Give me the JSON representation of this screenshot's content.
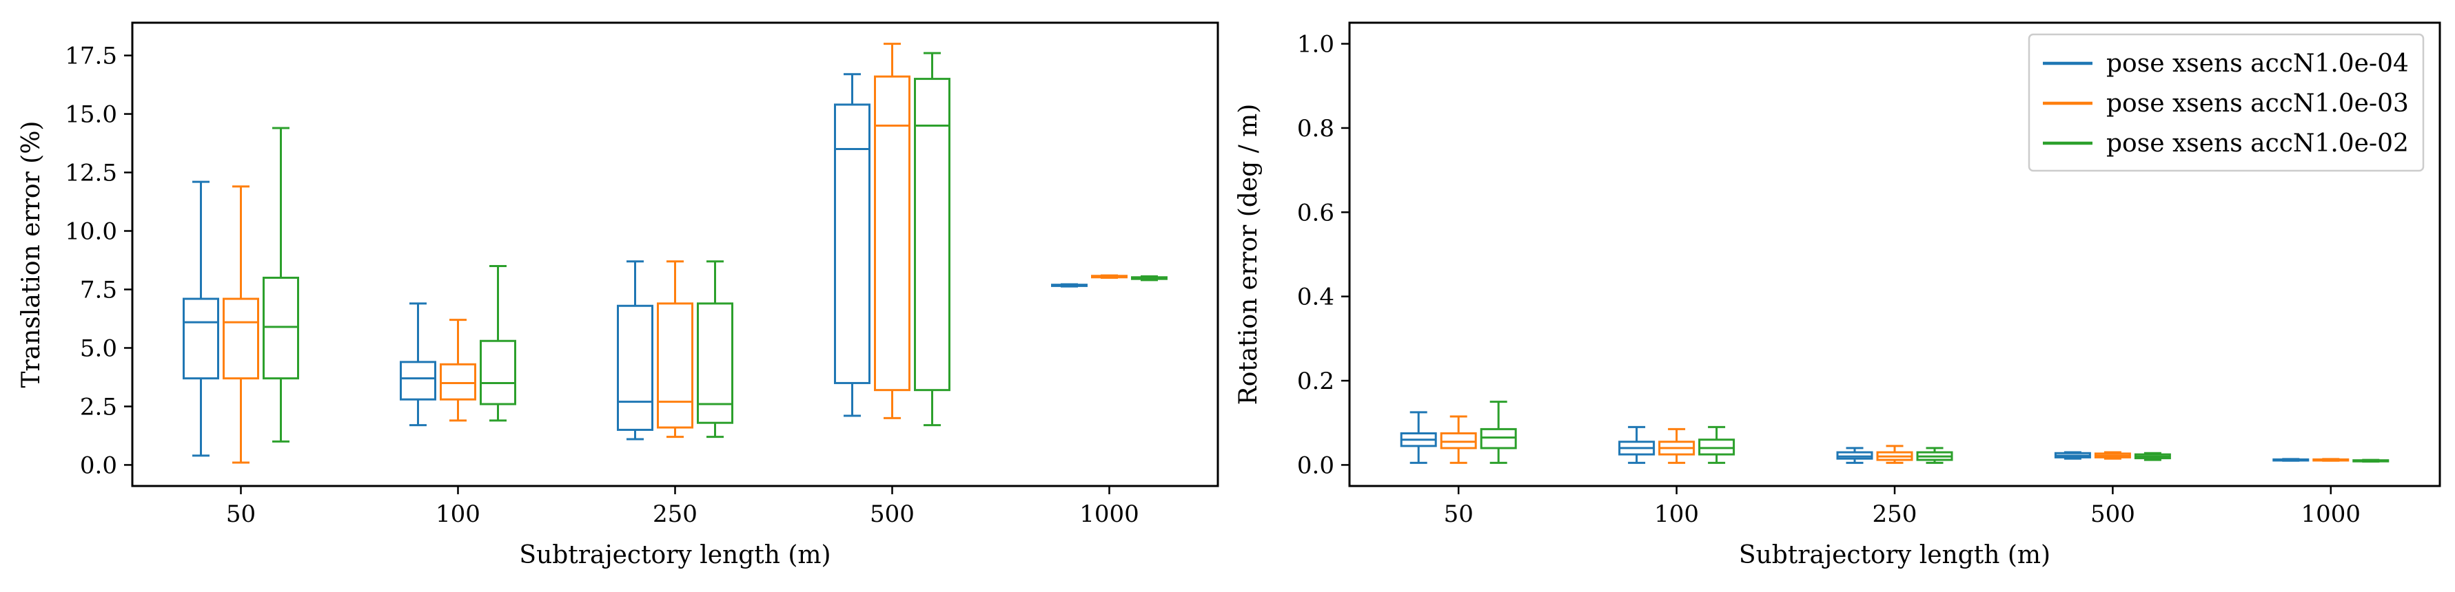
{
  "colors": {
    "series": [
      "#1f77b4",
      "#ff7f0e",
      "#2ca02c"
    ]
  },
  "chart_data": [
    {
      "type": "box",
      "xlabel": "Subtrajectory length (m)",
      "ylabel": "Translation error (%)",
      "ylim": [
        -0.9,
        18.9
      ],
      "yticks": [
        "0.0",
        "2.5",
        "5.0",
        "7.5",
        "10.0",
        "12.5",
        "15.0",
        "17.5"
      ],
      "yticks_values": [
        0,
        2.5,
        5,
        7.5,
        10,
        12.5,
        15,
        17.5
      ],
      "categories": [
        "50",
        "100",
        "250",
        "500",
        "1000"
      ],
      "series": [
        {
          "boxes": [
            {
              "whislo": 0.4,
              "q1": 3.7,
              "med": 6.1,
              "q3": 7.1,
              "whishi": 12.1
            },
            {
              "whislo": 1.7,
              "q1": 2.8,
              "med": 3.7,
              "q3": 4.4,
              "whishi": 6.9
            },
            {
              "whislo": 1.1,
              "q1": 1.5,
              "med": 2.7,
              "q3": 6.8,
              "whishi": 8.7
            },
            {
              "whislo": 2.1,
              "q1": 3.5,
              "med": 13.5,
              "q3": 15.4,
              "whishi": 16.7
            },
            {
              "whislo": 7.63,
              "q1": 7.65,
              "med": 7.67,
              "q3": 7.7,
              "whishi": 7.72
            }
          ]
        },
        {
          "boxes": [
            {
              "whislo": 0.1,
              "q1": 3.7,
              "med": 6.1,
              "q3": 7.1,
              "whishi": 11.9
            },
            {
              "whislo": 1.9,
              "q1": 2.8,
              "med": 3.5,
              "q3": 4.3,
              "whishi": 6.2
            },
            {
              "whislo": 1.2,
              "q1": 1.6,
              "med": 2.7,
              "q3": 6.9,
              "whishi": 8.7
            },
            {
              "whislo": 2.0,
              "q1": 3.2,
              "med": 14.5,
              "q3": 16.6,
              "whishi": 18.0
            },
            {
              "whislo": 8.0,
              "q1": 8.02,
              "med": 8.05,
              "q3": 8.08,
              "whishi": 8.1
            }
          ]
        },
        {
          "boxes": [
            {
              "whislo": 1.0,
              "q1": 3.7,
              "med": 5.9,
              "q3": 8.0,
              "whishi": 14.4
            },
            {
              "whislo": 1.9,
              "q1": 2.6,
              "med": 3.5,
              "q3": 5.3,
              "whishi": 8.5
            },
            {
              "whislo": 1.2,
              "q1": 1.8,
              "med": 2.6,
              "q3": 6.9,
              "whishi": 8.7
            },
            {
              "whislo": 1.7,
              "q1": 3.2,
              "med": 14.5,
              "q3": 16.5,
              "whishi": 17.6
            },
            {
              "whislo": 7.9,
              "q1": 7.95,
              "med": 7.98,
              "q3": 8.02,
              "whishi": 8.06
            }
          ]
        }
      ]
    },
    {
      "type": "box",
      "xlabel": "Subtrajectory length (m)",
      "ylabel": "Rotation error (deg / m)",
      "ylim": [
        -0.05,
        1.05
      ],
      "yticks": [
        "0.0",
        "0.2",
        "0.4",
        "0.6",
        "0.8",
        "1.0"
      ],
      "yticks_values": [
        0,
        0.2,
        0.4,
        0.6,
        0.8,
        1.0
      ],
      "categories": [
        "50",
        "100",
        "250",
        "500",
        "1000"
      ],
      "legend": {
        "position": "top-right",
        "entries": [
          "pose xsens accN1.0e-04",
          "pose xsens accN1.0e-03",
          "pose xsens accN1.0e-02"
        ]
      },
      "series": [
        {
          "name": "pose xsens accN1.0e-04",
          "boxes": [
            {
              "whislo": 0.005,
              "q1": 0.045,
              "med": 0.06,
              "q3": 0.075,
              "whishi": 0.125
            },
            {
              "whislo": 0.005,
              "q1": 0.025,
              "med": 0.04,
              "q3": 0.055,
              "whishi": 0.09
            },
            {
              "whislo": 0.005,
              "q1": 0.015,
              "med": 0.02,
              "q3": 0.03,
              "whishi": 0.04
            },
            {
              "whislo": 0.015,
              "q1": 0.018,
              "med": 0.022,
              "q3": 0.028,
              "whishi": 0.03
            },
            {
              "whislo": 0.01,
              "q1": 0.011,
              "med": 0.012,
              "q3": 0.013,
              "whishi": 0.014
            }
          ]
        },
        {
          "name": "pose xsens accN1.0e-03",
          "boxes": [
            {
              "whislo": 0.005,
              "q1": 0.04,
              "med": 0.055,
              "q3": 0.075,
              "whishi": 0.115
            },
            {
              "whislo": 0.005,
              "q1": 0.025,
              "med": 0.04,
              "q3": 0.055,
              "whishi": 0.085
            },
            {
              "whislo": 0.005,
              "q1": 0.012,
              "med": 0.02,
              "q3": 0.03,
              "whishi": 0.045
            },
            {
              "whislo": 0.015,
              "q1": 0.018,
              "med": 0.022,
              "q3": 0.027,
              "whishi": 0.03
            },
            {
              "whislo": 0.01,
              "q1": 0.011,
              "med": 0.012,
              "q3": 0.013,
              "whishi": 0.014
            }
          ]
        },
        {
          "name": "pose xsens accN1.0e-02",
          "boxes": [
            {
              "whislo": 0.005,
              "q1": 0.04,
              "med": 0.065,
              "q3": 0.085,
              "whishi": 0.15
            },
            {
              "whislo": 0.005,
              "q1": 0.025,
              "med": 0.04,
              "q3": 0.06,
              "whishi": 0.09
            },
            {
              "whislo": 0.005,
              "q1": 0.012,
              "med": 0.02,
              "q3": 0.03,
              "whishi": 0.04
            },
            {
              "whislo": 0.012,
              "q1": 0.016,
              "med": 0.02,
              "q3": 0.025,
              "whishi": 0.028
            },
            {
              "whislo": 0.008,
              "q1": 0.009,
              "med": 0.01,
              "q3": 0.011,
              "whishi": 0.012
            }
          ]
        }
      ]
    }
  ]
}
